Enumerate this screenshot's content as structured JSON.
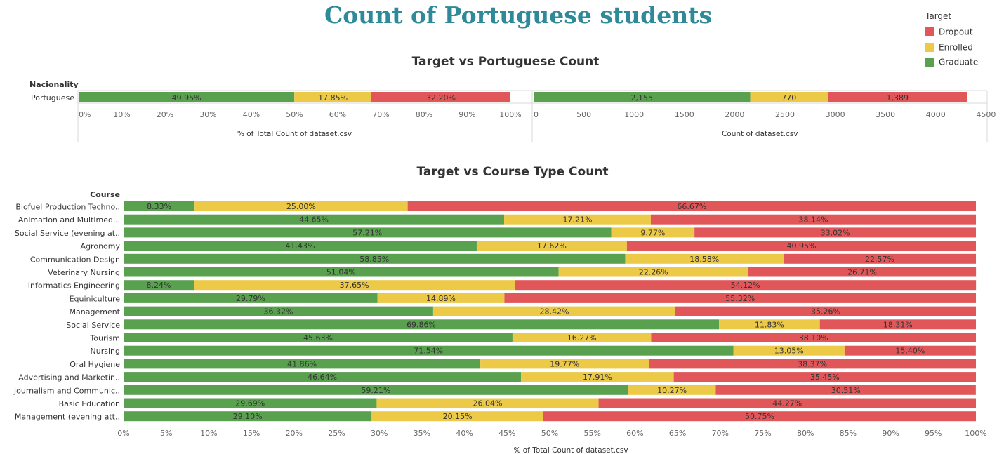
{
  "page_title": "Count of Portuguese students",
  "legend": {
    "title": "Target",
    "items": [
      {
        "label": "Dropout",
        "color": "#e15759"
      },
      {
        "label": "Enrolled",
        "color": "#edc948"
      },
      {
        "label": "Graduate",
        "color": "#59a14f"
      }
    ]
  },
  "chart_data": [
    {
      "type": "bar",
      "title": "Target vs Portuguese Count",
      "row_header": "Nacionality",
      "categories": [
        "Portuguese"
      ],
      "panels": [
        {
          "xlabel": "% of Total Count of dataset.csv",
          "ticks": [
            "0%",
            "10%",
            "20%",
            "30%",
            "40%",
            "50%",
            "60%",
            "70%",
            "80%",
            "90%",
            "100%"
          ],
          "xlim": [
            0,
            100
          ],
          "series": [
            {
              "name": "Graduate",
              "values": [
                49.95
              ],
              "labels": [
                "49.95%"
              ]
            },
            {
              "name": "Enrolled",
              "values": [
                17.85
              ],
              "labels": [
                "17.85%"
              ]
            },
            {
              "name": "Dropout",
              "values": [
                32.2
              ],
              "labels": [
                "32.20%"
              ]
            }
          ]
        },
        {
          "xlabel": "Count of dataset.csv",
          "ticks": [
            "0",
            "500",
            "1000",
            "1500",
            "2000",
            "2500",
            "3000",
            "3500",
            "4000",
            "4500"
          ],
          "xlim": [
            0,
            4500
          ],
          "series": [
            {
              "name": "Graduate",
              "values": [
                2155
              ],
              "labels": [
                "2,155"
              ]
            },
            {
              "name": "Enrolled",
              "values": [
                770
              ],
              "labels": [
                "770"
              ]
            },
            {
              "name": "Dropout",
              "values": [
                1389
              ],
              "labels": [
                "1,389"
              ]
            }
          ]
        }
      ]
    },
    {
      "type": "bar",
      "title": "Target vs Course Type Count",
      "row_header": "Course",
      "xlabel": "% of Total Count of dataset.csv",
      "ticks": [
        "0%",
        "5%",
        "10%",
        "15%",
        "20%",
        "25%",
        "30%",
        "35%",
        "40%",
        "45%",
        "50%",
        "55%",
        "60%",
        "65%",
        "70%",
        "75%",
        "80%",
        "85%",
        "90%",
        "95%",
        "100%"
      ],
      "xlim": [
        0,
        100
      ],
      "categories": [
        "Biofuel Production Techno..",
        "Animation and Multimedi..",
        "Social Service (evening at..",
        "Agronomy",
        "Communication Design",
        "Veterinary Nursing",
        "Informatics Engineering",
        "Equiniculture",
        "Management",
        "Social Service",
        "Tourism",
        "Nursing",
        "Oral Hygiene",
        "Advertising and Marketin..",
        "Journalism and Communic..",
        "Basic Education",
        "Management (evening att.."
      ],
      "series": [
        {
          "name": "Graduate",
          "values": [
            8.33,
            44.65,
            57.21,
            41.43,
            58.85,
            51.04,
            8.24,
            29.79,
            36.32,
            69.86,
            45.63,
            71.54,
            41.86,
            46.64,
            59.21,
            29.69,
            29.1
          ],
          "labels": [
            "8.33%",
            "44.65%",
            "57.21%",
            "41.43%",
            "58.85%",
            "51.04%",
            "8.24%",
            "29.79%",
            "36.32%",
            "69.86%",
            "45.63%",
            "71.54%",
            "41.86%",
            "46.64%",
            "59.21%",
            "29.69%",
            "29.10%"
          ]
        },
        {
          "name": "Enrolled",
          "values": [
            25.0,
            17.21,
            9.77,
            17.62,
            18.58,
            22.26,
            37.65,
            14.89,
            28.42,
            11.83,
            16.27,
            13.05,
            19.77,
            17.91,
            10.27,
            26.04,
            20.15
          ],
          "labels": [
            "25.00%",
            "17.21%",
            "9.77%",
            "17.62%",
            "18.58%",
            "22.26%",
            "37.65%",
            "14.89%",
            "28.42%",
            "11.83%",
            "16.27%",
            "13.05%",
            "19.77%",
            "17.91%",
            "10.27%",
            "26.04%",
            "20.15%"
          ]
        },
        {
          "name": "Dropout",
          "values": [
            66.67,
            38.14,
            33.02,
            40.95,
            22.57,
            26.71,
            54.12,
            55.32,
            35.26,
            18.31,
            38.1,
            15.4,
            38.37,
            35.45,
            30.51,
            44.27,
            50.75
          ],
          "labels": [
            "66.67%",
            "38.14%",
            "33.02%",
            "40.95%",
            "22.57%",
            "26.71%",
            "54.12%",
            "55.32%",
            "35.26%",
            "18.31%",
            "38.10%",
            "15.40%",
            "38.37%",
            "35.45%",
            "30.51%",
            "44.27%",
            "50.75%"
          ]
        }
      ]
    }
  ]
}
